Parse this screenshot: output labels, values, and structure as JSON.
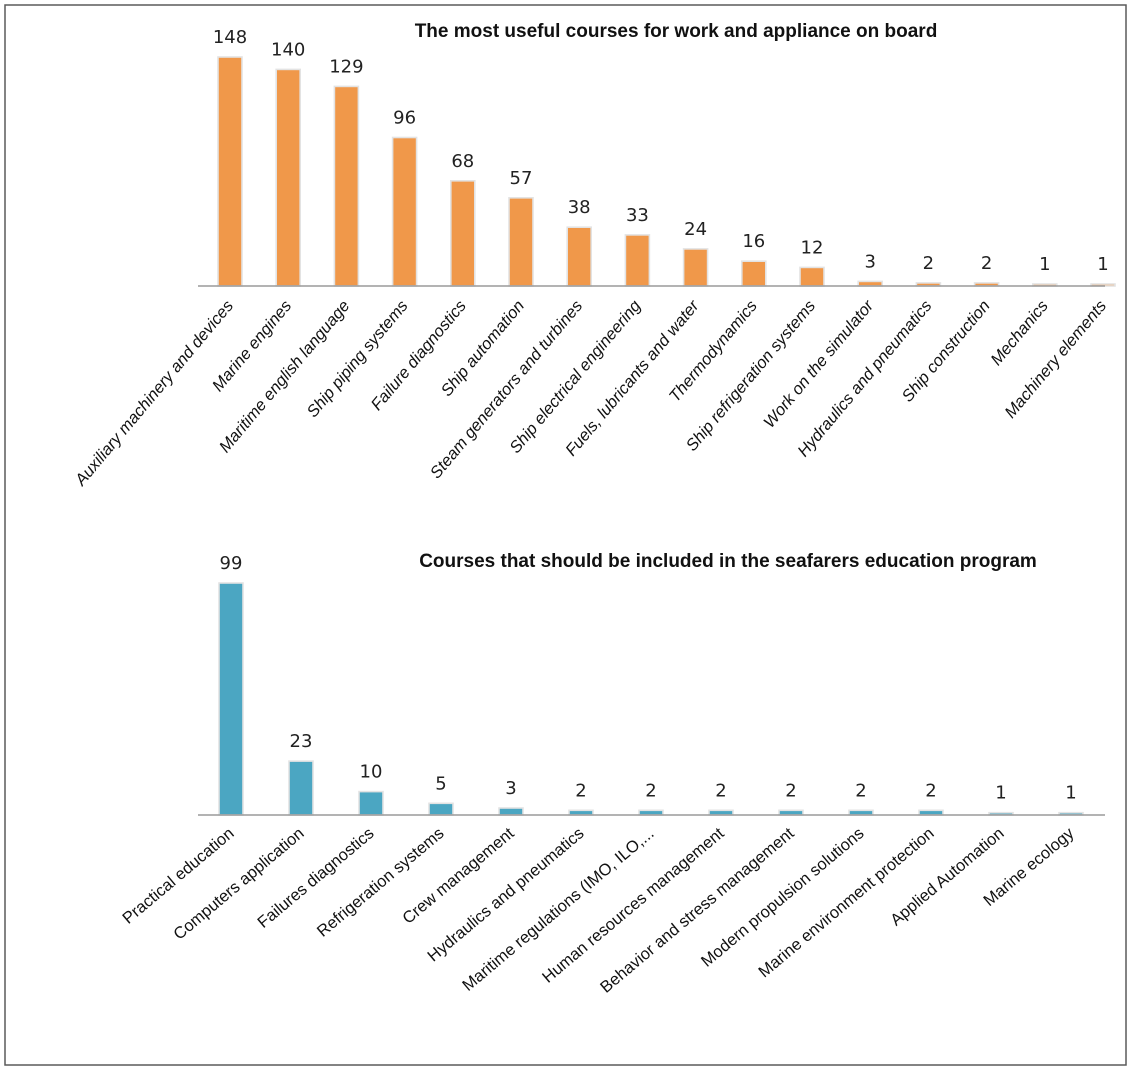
{
  "chart_data": [
    {
      "type": "bar",
      "title": "The most useful courses for work and appliance on board",
      "color": "#F0984A",
      "tick_style": "italic",
      "categories": [
        "Auxiliary machinery and devices",
        "Marine engines",
        "Maritime english language",
        "Ship piping systems",
        "Failure diagnostics",
        "Ship automation",
        "Steam generators and turbines",
        "Ship electrical engineering",
        "Fuels, lubricants and water",
        "Thermodynamics",
        "Ship refrigeration systems",
        "Work on the simulator",
        "Hydraulics and pneumatics",
        "Ship construction",
        "Mechanics",
        "Machinery elements"
      ],
      "values": [
        148,
        140,
        129,
        96,
        68,
        57,
        38,
        33,
        24,
        16,
        12,
        3,
        2,
        2,
        1,
        1
      ],
      "ylim": [
        0,
        148
      ],
      "grid": false
    },
    {
      "type": "bar",
      "title": "Courses that should be included in the seafarers education program",
      "color": "#4BA6C2",
      "tick_style": "normal",
      "categories": [
        "Practical education",
        "Computers application",
        "Failures diagnostics",
        "Refrigeration systems",
        "Crew management",
        "Hydraulics and pneumatics",
        "Maritime regulations (IMO, ILO,...",
        "Human resources management",
        "Behavior and stress management",
        "Modern propulsion solutions",
        "Marine environment protection",
        "Applied Automation",
        "Marine ecology"
      ],
      "values": [
        99,
        23,
        10,
        5,
        3,
        2,
        2,
        2,
        2,
        2,
        2,
        1,
        1
      ],
      "ylim": [
        0,
        99
      ],
      "grid": false
    }
  ]
}
